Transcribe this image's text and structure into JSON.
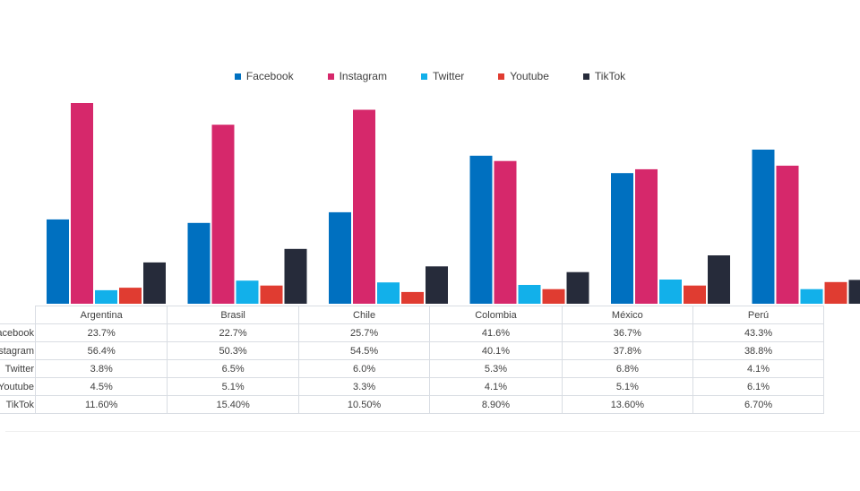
{
  "chart_data": {
    "type": "bar",
    "categories": [
      "Argentina",
      "Brasil",
      "Chile",
      "Colombia",
      "México",
      "Perú"
    ],
    "series": [
      {
        "name": "Facebook",
        "color": "#0070c0",
        "values": [
          23.7,
          22.7,
          25.7,
          41.6,
          36.7,
          43.3
        ],
        "labels": [
          "23.7%",
          "22.7%",
          "25.7%",
          "41.6%",
          "36.7%",
          "43.3%"
        ]
      },
      {
        "name": "Instagram",
        "color": "#d6286b",
        "values": [
          56.4,
          50.3,
          54.5,
          40.1,
          37.8,
          38.8
        ],
        "labels": [
          "56.4%",
          "50.3%",
          "54.5%",
          "40.1%",
          "37.8%",
          "38.8%"
        ]
      },
      {
        "name": "Twitter",
        "color": "#12b0ea",
        "values": [
          3.8,
          6.5,
          6.0,
          5.3,
          6.8,
          4.1
        ],
        "labels": [
          "3.8%",
          "6.5%",
          "6.0%",
          "5.3%",
          "6.8%",
          "4.1%"
        ]
      },
      {
        "name": "Youtube",
        "color": "#e03c31",
        "values": [
          4.5,
          5.1,
          3.3,
          4.1,
          5.1,
          6.1
        ],
        "labels": [
          "4.5%",
          "5.1%",
          "3.3%",
          "4.1%",
          "5.1%",
          "6.1%"
        ]
      },
      {
        "name": "TikTok",
        "color": "#262b3a",
        "values": [
          11.6,
          15.4,
          10.5,
          8.9,
          13.6,
          6.7
        ],
        "labels": [
          "11.60%",
          "15.40%",
          "10.50%",
          "8.90%",
          "13.60%",
          "6.70%"
        ]
      }
    ],
    "title": "",
    "xlabel": "",
    "ylabel": "",
    "legend_position": "top",
    "grid": false,
    "ylim": [
      0,
      60
    ]
  },
  "table": {
    "row_headers": [
      "Facebook",
      "Instagram",
      "Twitter",
      "Youtube",
      "TikTok"
    ]
  }
}
